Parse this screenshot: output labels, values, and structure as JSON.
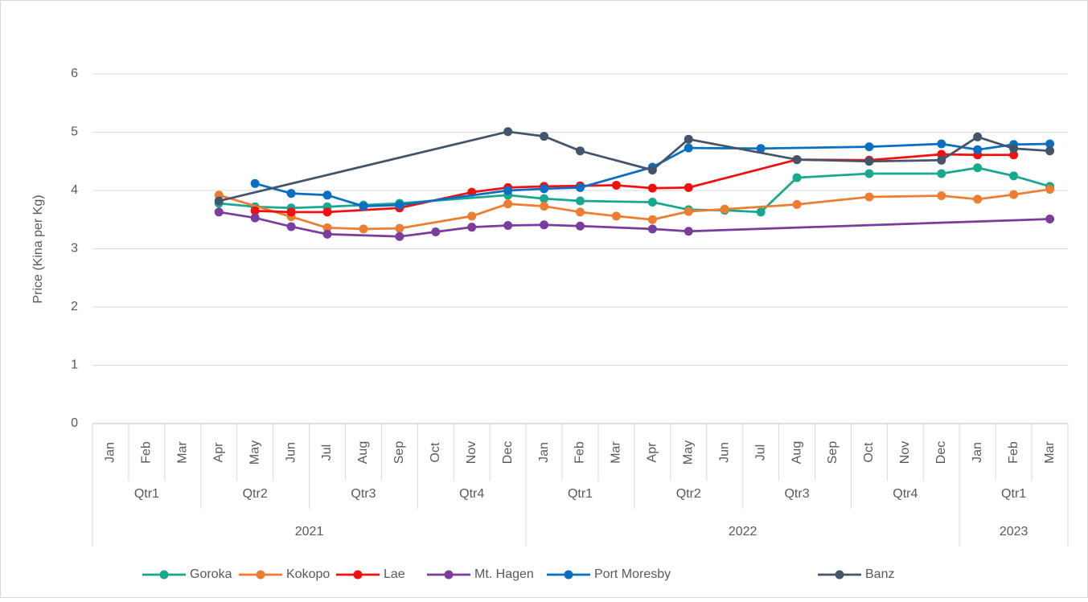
{
  "chart_data": {
    "type": "line",
    "y_label": "Price (Kina per Kg)",
    "categories": [
      "Jan",
      "Feb",
      "Mar",
      "Apr",
      "May",
      "Jun",
      "Jul",
      "Aug",
      "Sep",
      "Oct",
      "Nov",
      "Dec",
      "Jan",
      "Feb",
      "Mar",
      "Apr",
      "May",
      "Jun",
      "Jul",
      "Aug",
      "Sep",
      "Oct",
      "Nov",
      "Dec",
      "Jan",
      "Feb",
      "Mar"
    ],
    "quarters": [
      {
        "label": "Qtr1",
        "count": 3
      },
      {
        "label": "Qtr2",
        "count": 3
      },
      {
        "label": "Qtr3",
        "count": 3
      },
      {
        "label": "Qtr4",
        "count": 3
      },
      {
        "label": "Qtr1",
        "count": 3
      },
      {
        "label": "Qtr2",
        "count": 3
      },
      {
        "label": "Qtr3",
        "count": 3
      },
      {
        "label": "Qtr4",
        "count": 3
      },
      {
        "label": "Qtr1",
        "count": 3
      }
    ],
    "years": [
      {
        "label": "2021",
        "count": 12
      },
      {
        "label": "2022",
        "count": 12
      },
      {
        "label": "2023",
        "count": 3
      }
    ],
    "ylim": [
      0,
      6
    ],
    "yticks": [
      0,
      1,
      2,
      3,
      4,
      5,
      6
    ],
    "grid": true,
    "legend": "bottom",
    "series": [
      {
        "name": "Goroka",
        "color": "#17a88f",
        "values": [
          null,
          null,
          null,
          3.78,
          3.72,
          3.7,
          3.72,
          3.75,
          3.78,
          null,
          null,
          3.92,
          3.86,
          3.82,
          null,
          3.8,
          3.67,
          3.66,
          3.63,
          4.22,
          null,
          4.29,
          null,
          4.29,
          4.39,
          4.25,
          4.07
        ]
      },
      {
        "name": "Kokopo",
        "color": "#ed7d31",
        "values": [
          null,
          null,
          null,
          3.92,
          null,
          3.55,
          3.36,
          3.34,
          3.35,
          null,
          3.56,
          3.77,
          3.73,
          3.63,
          3.56,
          3.5,
          3.64,
          3.68,
          null,
          3.76,
          null,
          3.89,
          null,
          3.91,
          3.85,
          3.93,
          4.02
        ]
      },
      {
        "name": "Lae",
        "color": "#f01010",
        "values": [
          null,
          null,
          null,
          null,
          3.65,
          3.63,
          3.63,
          null,
          3.7,
          null,
          3.97,
          4.05,
          4.07,
          4.08,
          4.09,
          4.04,
          4.05,
          null,
          null,
          4.53,
          null,
          4.52,
          null,
          4.62,
          4.61,
          4.61,
          null
        ]
      },
      {
        "name": "Mt. Hagen",
        "color": "#7a3d9c",
        "values": [
          null,
          null,
          null,
          3.63,
          3.53,
          3.38,
          3.25,
          null,
          3.21,
          3.29,
          3.37,
          3.4,
          3.41,
          3.39,
          null,
          3.34,
          3.3,
          null,
          null,
          null,
          null,
          null,
          null,
          null,
          null,
          null,
          3.51
        ]
      },
      {
        "name": "Port Moresby",
        "color": "#0a6fc2",
        "values": [
          null,
          null,
          null,
          null,
          4.12,
          3.95,
          3.92,
          3.73,
          3.75,
          null,
          null,
          4.0,
          4.03,
          4.05,
          null,
          4.4,
          4.73,
          null,
          4.72,
          null,
          null,
          4.75,
          null,
          4.8,
          4.7,
          4.79,
          4.8
        ]
      },
      {
        "name": "Banz",
        "color": "#44546a",
        "values": [
          null,
          null,
          null,
          3.82,
          null,
          null,
          null,
          null,
          null,
          null,
          null,
          5.01,
          4.93,
          4.68,
          null,
          4.35,
          4.88,
          null,
          null,
          4.53,
          null,
          4.5,
          null,
          4.52,
          4.92,
          4.72,
          4.68
        ]
      }
    ]
  }
}
